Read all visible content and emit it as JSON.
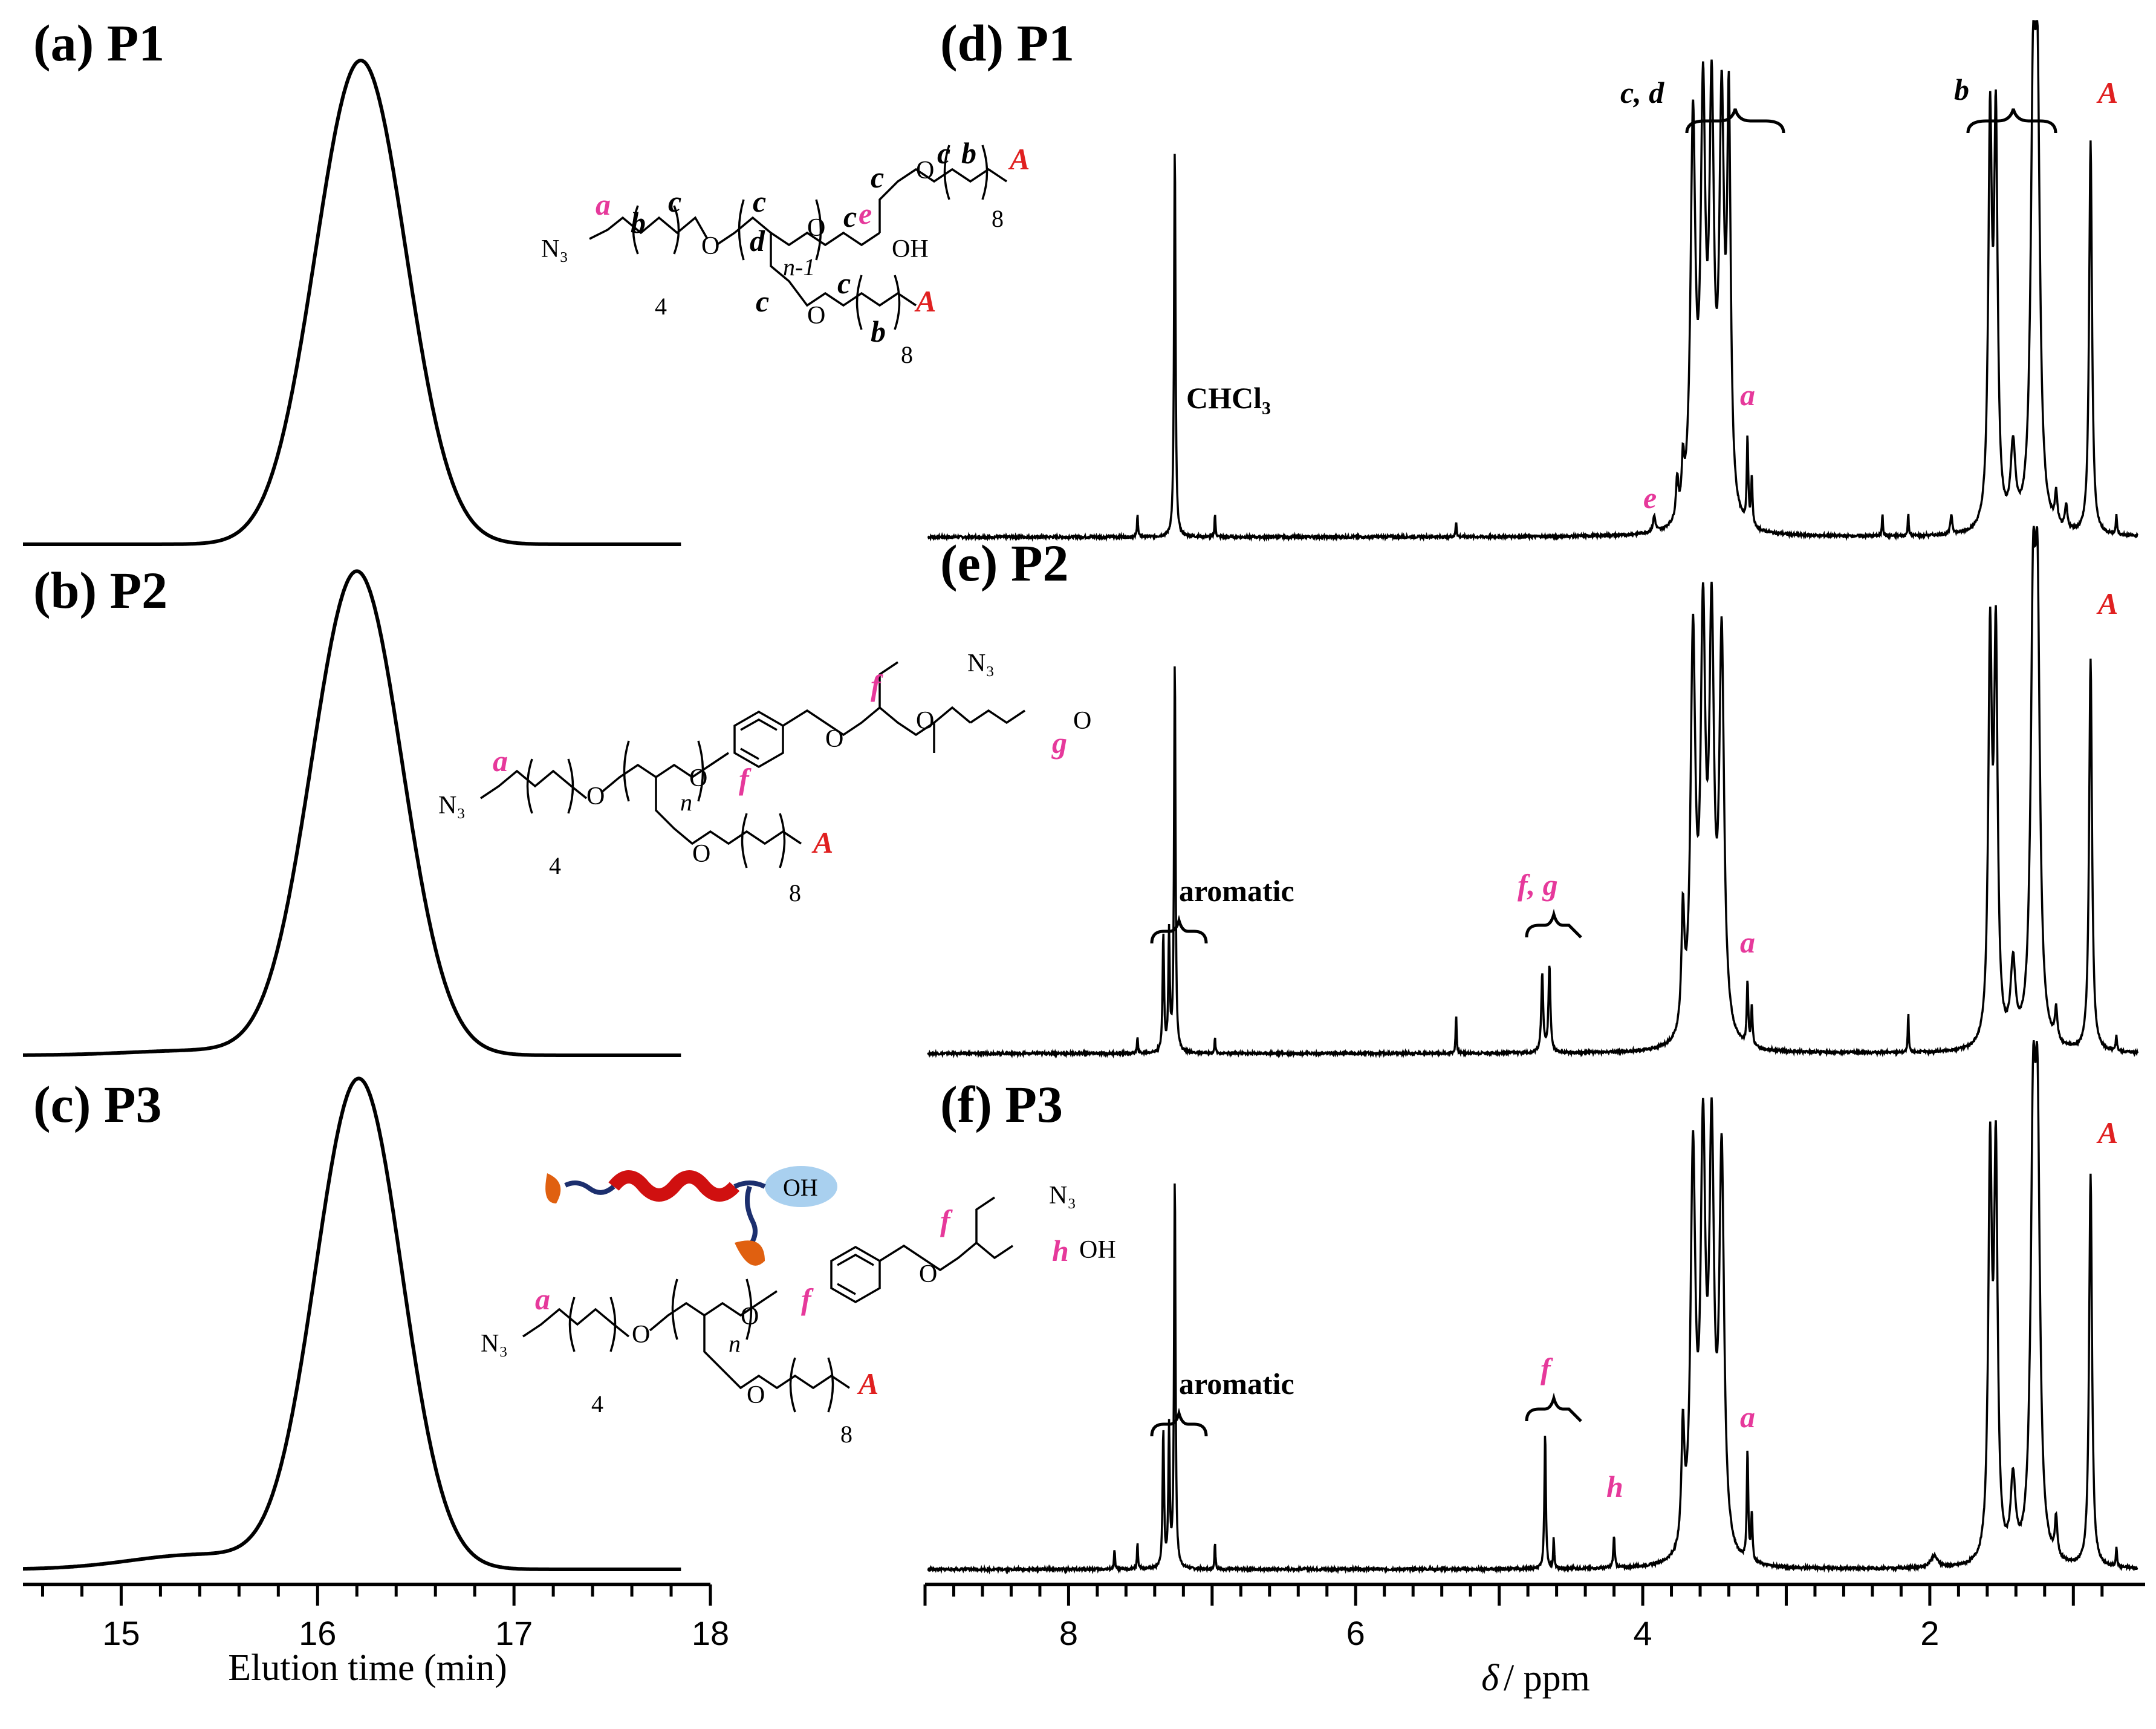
{
  "colors": {
    "line": "#000000",
    "label_pink": "#e6399b",
    "label_red": "#e02020",
    "oh_blob": "#a9d0ef",
    "helix_red": "#d01010",
    "chain_blue": "#1c2f6e",
    "flower_orange": "#e06010"
  },
  "chart_data": [
    {
      "type": "line",
      "panel": "left",
      "xlabel": "Elution time (min)",
      "xlim": [
        14.5,
        18
      ],
      "xticks": [
        15,
        16,
        17,
        18
      ],
      "grid": false,
      "series": [
        {
          "label": "(a) P1",
          "peak_time": 16.22,
          "sigma": 0.23,
          "tail_shoulder": 0.0
        },
        {
          "label": "(b) P2",
          "peak_time": 16.2,
          "sigma": 0.23,
          "tail_shoulder": 0.01
        },
        {
          "label": "(c) P3",
          "peak_time": 16.21,
          "sigma": 0.22,
          "tail_shoulder": 0.03
        }
      ]
    },
    {
      "type": "line",
      "panel": "right",
      "xlabel_symbol": "δ",
      "xlabel_unit": "/ ppm",
      "xlim": [
        9,
        0.5
      ],
      "xticks": [
        8,
        6,
        4,
        2
      ],
      "grid": false,
      "series": [
        {
          "label": "(d) P1",
          "peaks": [
            {
              "ppm": 7.26,
              "h": 1.0,
              "w": 0.006
            },
            {
              "ppm": 7.52,
              "h": 0.06,
              "w": 0.004
            },
            {
              "ppm": 6.98,
              "h": 0.06,
              "w": 0.004
            },
            {
              "ppm": 5.3,
              "h": 0.04,
              "w": 0.004
            },
            {
              "ppm": 3.92,
              "h": 0.04,
              "w": 0.01
            },
            {
              "ppm": 3.76,
              "h": 0.1,
              "w": 0.01
            },
            {
              "ppm": 3.72,
              "h": 0.12,
              "w": 0.01
            },
            {
              "ppm": 3.65,
              "h": 1.0,
              "w": 0.02
            },
            {
              "ppm": 3.58,
              "h": 1.0,
              "w": 0.02
            },
            {
              "ppm": 3.52,
              "h": 1.0,
              "w": 0.02
            },
            {
              "ppm": 3.45,
              "h": 1.0,
              "w": 0.02
            },
            {
              "ppm": 3.4,
              "h": 1.0,
              "w": 0.015
            },
            {
              "ppm": 3.27,
              "h": 0.22,
              "w": 0.006
            },
            {
              "ppm": 3.24,
              "h": 0.12,
              "w": 0.006
            },
            {
              "ppm": 2.33,
              "h": 0.06,
              "w": 0.004
            },
            {
              "ppm": 2.15,
              "h": 0.06,
              "w": 0.004
            },
            {
              "ppm": 1.85,
              "h": 0.05,
              "w": 0.008
            },
            {
              "ppm": 1.58,
              "h": 1.0,
              "w": 0.015
            },
            {
              "ppm": 1.54,
              "h": 1.0,
              "w": 0.015
            },
            {
              "ppm": 1.42,
              "h": 0.2,
              "w": 0.02
            },
            {
              "ppm": 1.28,
              "h": 1.0,
              "w": 0.02
            },
            {
              "ppm": 1.25,
              "h": 1.0,
              "w": 0.02
            },
            {
              "ppm": 1.12,
              "h": 0.08,
              "w": 0.01
            },
            {
              "ppm": 1.05,
              "h": 0.06,
              "w": 0.01
            },
            {
              "ppm": 0.88,
              "h": 1.0,
              "w": 0.012
            },
            {
              "ppm": 0.7,
              "h": 0.05,
              "w": 0.005
            }
          ]
        },
        {
          "label": "(e) P2",
          "peaks": [
            {
              "ppm": 7.26,
              "h": 1.0,
              "w": 0.006
            },
            {
              "ppm": 7.34,
              "h": 0.3,
              "w": 0.006
            },
            {
              "ppm": 7.3,
              "h": 0.3,
              "w": 0.006
            },
            {
              "ppm": 7.52,
              "h": 0.04,
              "w": 0.004
            },
            {
              "ppm": 6.98,
              "h": 0.04,
              "w": 0.004
            },
            {
              "ppm": 5.3,
              "h": 0.1,
              "w": 0.004
            },
            {
              "ppm": 4.7,
              "h": 0.2,
              "w": 0.008
            },
            {
              "ppm": 4.65,
              "h": 0.22,
              "w": 0.008
            },
            {
              "ppm": 3.72,
              "h": 0.3,
              "w": 0.012
            },
            {
              "ppm": 3.65,
              "h": 1.0,
              "w": 0.02
            },
            {
              "ppm": 3.58,
              "h": 1.0,
              "w": 0.02
            },
            {
              "ppm": 3.52,
              "h": 1.0,
              "w": 0.02
            },
            {
              "ppm": 3.45,
              "h": 1.0,
              "w": 0.02
            },
            {
              "ppm": 3.27,
              "h": 0.16,
              "w": 0.006
            },
            {
              "ppm": 3.24,
              "h": 0.1,
              "w": 0.006
            },
            {
              "ppm": 2.15,
              "h": 0.1,
              "w": 0.004
            },
            {
              "ppm": 1.58,
              "h": 1.0,
              "w": 0.015
            },
            {
              "ppm": 1.54,
              "h": 1.0,
              "w": 0.015
            },
            {
              "ppm": 1.42,
              "h": 0.2,
              "w": 0.02
            },
            {
              "ppm": 1.28,
              "h": 1.0,
              "w": 0.02
            },
            {
              "ppm": 1.25,
              "h": 1.0,
              "w": 0.02
            },
            {
              "ppm": 1.12,
              "h": 0.08,
              "w": 0.01
            },
            {
              "ppm": 0.88,
              "h": 1.0,
              "w": 0.012
            },
            {
              "ppm": 0.7,
              "h": 0.04,
              "w": 0.005
            }
          ]
        },
        {
          "label": "(f) P3",
          "peaks": [
            {
              "ppm": 7.26,
              "h": 1.0,
              "w": 0.006
            },
            {
              "ppm": 7.34,
              "h": 0.35,
              "w": 0.006
            },
            {
              "ppm": 7.3,
              "h": 0.35,
              "w": 0.006
            },
            {
              "ppm": 7.68,
              "h": 0.05,
              "w": 0.004
            },
            {
              "ppm": 7.52,
              "h": 0.07,
              "w": 0.004
            },
            {
              "ppm": 6.98,
              "h": 0.07,
              "w": 0.004
            },
            {
              "ppm": 4.68,
              "h": 0.35,
              "w": 0.006
            },
            {
              "ppm": 4.62,
              "h": 0.08,
              "w": 0.004
            },
            {
              "ppm": 4.2,
              "h": 0.08,
              "w": 0.006
            },
            {
              "ppm": 3.72,
              "h": 0.3,
              "w": 0.012
            },
            {
              "ppm": 3.65,
              "h": 1.0,
              "w": 0.02
            },
            {
              "ppm": 3.58,
              "h": 1.0,
              "w": 0.02
            },
            {
              "ppm": 3.52,
              "h": 1.0,
              "w": 0.02
            },
            {
              "ppm": 3.45,
              "h": 1.0,
              "w": 0.02
            },
            {
              "ppm": 3.27,
              "h": 0.28,
              "w": 0.006
            },
            {
              "ppm": 3.24,
              "h": 0.12,
              "w": 0.006
            },
            {
              "ppm": 1.97,
              "h": 0.03,
              "w": 0.03
            },
            {
              "ppm": 1.58,
              "h": 1.0,
              "w": 0.015
            },
            {
              "ppm": 1.54,
              "h": 1.0,
              "w": 0.015
            },
            {
              "ppm": 1.42,
              "h": 0.2,
              "w": 0.02
            },
            {
              "ppm": 1.28,
              "h": 1.0,
              "w": 0.02
            },
            {
              "ppm": 1.25,
              "h": 1.0,
              "w": 0.02
            },
            {
              "ppm": 1.12,
              "h": 0.1,
              "w": 0.01
            },
            {
              "ppm": 0.88,
              "h": 1.0,
              "w": 0.012
            },
            {
              "ppm": 0.7,
              "h": 0.05,
              "w": 0.005
            }
          ]
        }
      ],
      "annotations": {
        "chcl3": "CHCl₃",
        "cd": "c, d",
        "e": "e",
        "a": "a",
        "b": "b",
        "A": "A",
        "aromatic": "aromatic",
        "fg": "f, g",
        "f": "f",
        "h": "h"
      }
    }
  ],
  "structures": {
    "common": {
      "N3": "N₃",
      "four": "4",
      "eight": "8",
      "OH": "OH",
      "O": "O",
      "n": "n",
      "n1": "n-1"
    },
    "P1_letters": {
      "a": "a",
      "b": "b",
      "c": "c",
      "d": "d",
      "e": "e",
      "A": "A"
    },
    "P2_letters": {
      "a": "a",
      "f": "f",
      "g": "g",
      "A": "A"
    },
    "P3_letters": {
      "a": "a",
      "f": "f",
      "h": "h",
      "A": "A"
    }
  }
}
